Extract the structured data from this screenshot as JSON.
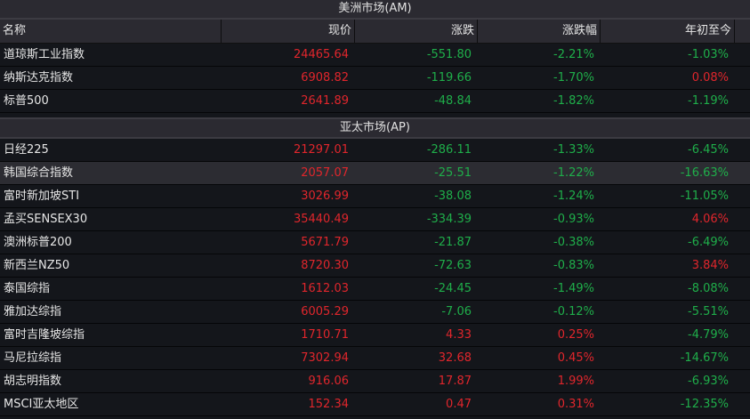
{
  "columns": [
    "名称",
    "现价",
    "涨跌",
    "涨跌幅",
    "年初至今"
  ],
  "colors": {
    "up": "#e0262c",
    "down": "#1fae4a",
    "highlight": "#2c2c32"
  },
  "sections": [
    {
      "title": "美洲市场(AM)",
      "rows": [
        [
          "道琼斯工业指数",
          "24465.64",
          "-551.80",
          "-2.21%",
          "-1.03%"
        ],
        [
          "纳斯达克指数",
          "6908.82",
          "-119.66",
          "-1.70%",
          "0.08%"
        ],
        [
          "标普500",
          "2641.89",
          "-48.84",
          "-1.82%",
          "-1.19%"
        ]
      ]
    },
    {
      "title": "亚太市场(AP)",
      "selected_row": 1,
      "rows": [
        [
          "日经225",
          "21297.01",
          "-286.11",
          "-1.33%",
          "-6.45%"
        ],
        [
          "韩国综合指数",
          "2057.07",
          "-25.51",
          "-1.22%",
          "-16.63%"
        ],
        [
          "富时新加坡STI",
          "3026.99",
          "-38.08",
          "-1.24%",
          "-11.05%"
        ],
        [
          "孟买SENSEX30",
          "35440.49",
          "-334.39",
          "-0.93%",
          "4.06%"
        ],
        [
          "澳洲标普200",
          "5671.79",
          "-21.87",
          "-0.38%",
          "-6.49%"
        ],
        [
          "新西兰NZ50",
          "8720.30",
          "-72.63",
          "-0.83%",
          "3.84%"
        ],
        [
          "泰国综指",
          "1612.03",
          "-24.45",
          "-1.49%",
          "-8.08%"
        ],
        [
          "雅加达综指",
          "6005.29",
          "-7.06",
          "-0.12%",
          "-5.51%"
        ],
        [
          "富时吉隆坡综指",
          "1710.71",
          "4.33",
          "0.25%",
          "-4.79%"
        ],
        [
          "马尼拉综指",
          "7302.94",
          "32.68",
          "0.45%",
          "-14.67%"
        ],
        [
          "胡志明指数",
          "916.06",
          "17.87",
          "1.99%",
          "-6.93%"
        ],
        [
          "MSCI亚太地区",
          "152.34",
          "0.47",
          "0.31%",
          "-12.35%"
        ]
      ]
    }
  ]
}
